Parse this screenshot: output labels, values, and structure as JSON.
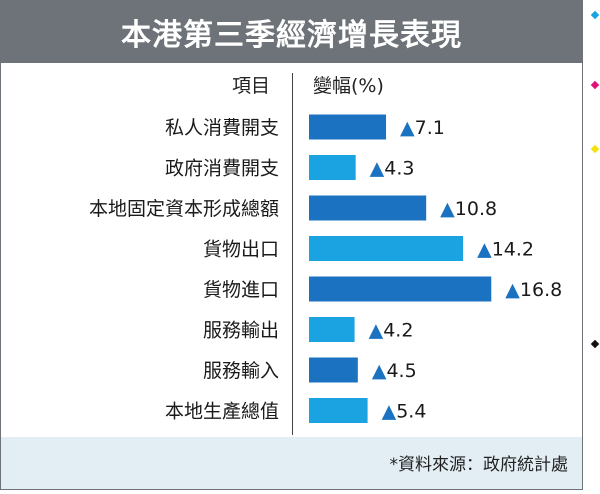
{
  "header": {
    "title": "本港第三季經濟增長表現"
  },
  "columns": {
    "item": "項目",
    "change": "變幅(%)"
  },
  "footer": {
    "source": "*資料來源：政府統計處"
  },
  "colors": {
    "header_bg": "#6d7378",
    "bar_dark": "#1b72c0",
    "bar_light": "#1aa3e0",
    "arrow": "#1b72c0",
    "footer_bg": "#e3edf4"
  },
  "chart_data": {
    "type": "bar",
    "orientation": "horizontal",
    "title": "本港第三季經濟增長表現",
    "xlabel": "變幅(%)",
    "ylabel": "項目",
    "categories": [
      "私人消費開支",
      "政府消費開支",
      "本地固定資本形成總額",
      "貨物出口",
      "貨物進口",
      "服務輸出",
      "服務輸入",
      "本地生產總值"
    ],
    "values": [
      7.1,
      4.3,
      10.8,
      14.2,
      16.8,
      4.2,
      4.5,
      5.4
    ],
    "value_labels": [
      "▲7.1",
      "▲4.3",
      "▲10.8",
      "▲14.2",
      "▲16.8",
      "▲4.2",
      "▲4.5",
      "▲5.4"
    ],
    "xlim": [
      0,
      20
    ],
    "grid": false,
    "legend": "none"
  }
}
